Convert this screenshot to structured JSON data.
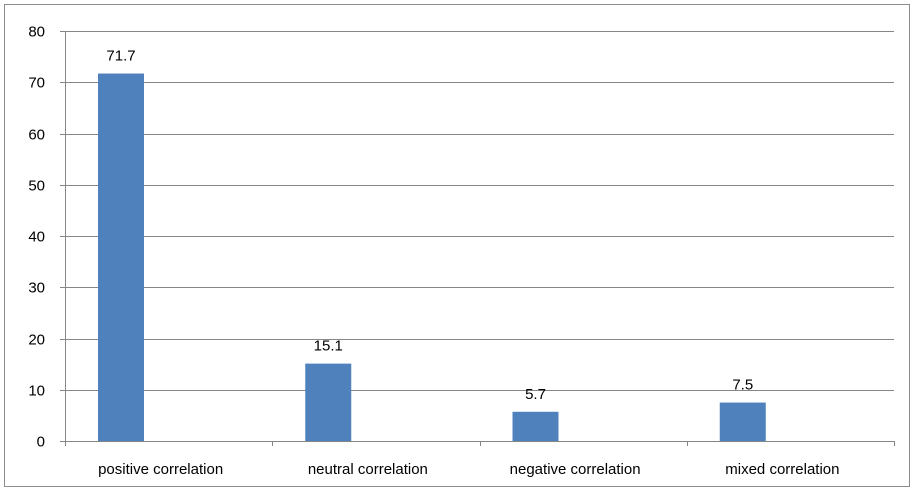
{
  "chart_data": {
    "type": "bar",
    "title": "",
    "xlabel": "",
    "ylabel": "",
    "categories": [
      "positive correlation",
      "neutral correlation",
      "negative correlation",
      "mixed correlation"
    ],
    "values": [
      71.7,
      15.1,
      5.7,
      7.5
    ],
    "data_labels": [
      "71.7",
      "15.1",
      "5.7",
      "7.5"
    ],
    "ylim": [
      0,
      80
    ],
    "yticks": [
      0,
      10,
      20,
      30,
      40,
      50,
      60,
      70,
      80
    ],
    "ytick_labels": [
      "0",
      "10",
      "20",
      "30",
      "40",
      "50",
      "60",
      "70",
      "80"
    ],
    "grid": true,
    "legend": "none",
    "bar_color": "#4f81bd",
    "gridline_color": "#868686"
  }
}
